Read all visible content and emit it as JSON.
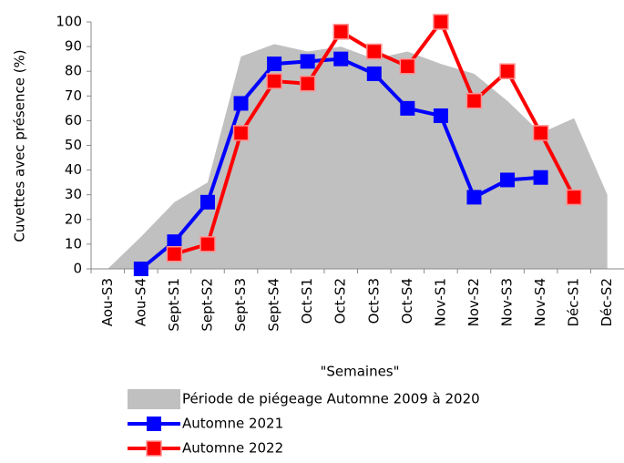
{
  "chart_data": {
    "type": "line",
    "x_label": "\"Semaines\"",
    "y_label": "Cuvettes avec présence (%)",
    "categories": [
      "Aou-S3",
      "Aou-S4",
      "Sept-S1",
      "Sept-S2",
      "Sept-S3",
      "Sept-S4",
      "Oct-S1",
      "Oct-S2",
      "Oct-S3",
      "Oct-S4",
      "Nov-S1",
      "Nov-S2",
      "Nov-S3",
      "Nov-S4",
      "Déc-S1",
      "Déc-S2"
    ],
    "series": [
      {
        "name": "Période de piégeage Automne 2009 à 2020",
        "type": "area",
        "color": "#c0c0c0",
        "values": [
          0,
          13,
          27,
          35,
          86,
          91,
          88,
          90,
          85,
          88,
          83,
          79,
          68,
          55,
          61,
          30
        ]
      },
      {
        "name": "Automne 2021",
        "type": "line",
        "color": "#0000ff",
        "values": [
          null,
          0,
          11,
          27,
          67,
          83,
          84,
          85,
          79,
          65,
          62,
          29,
          36,
          37,
          null,
          null
        ]
      },
      {
        "name": "Automne 2022",
        "type": "line",
        "color": "#ff0000",
        "values": [
          null,
          null,
          6,
          10,
          55,
          76,
          75,
          96,
          88,
          82,
          100,
          68,
          80,
          55,
          29,
          null
        ]
      }
    ],
    "ylim": [
      0,
      100
    ],
    "yticks": [
      0,
      10,
      20,
      30,
      40,
      50,
      60,
      70,
      80,
      90,
      100
    ]
  }
}
